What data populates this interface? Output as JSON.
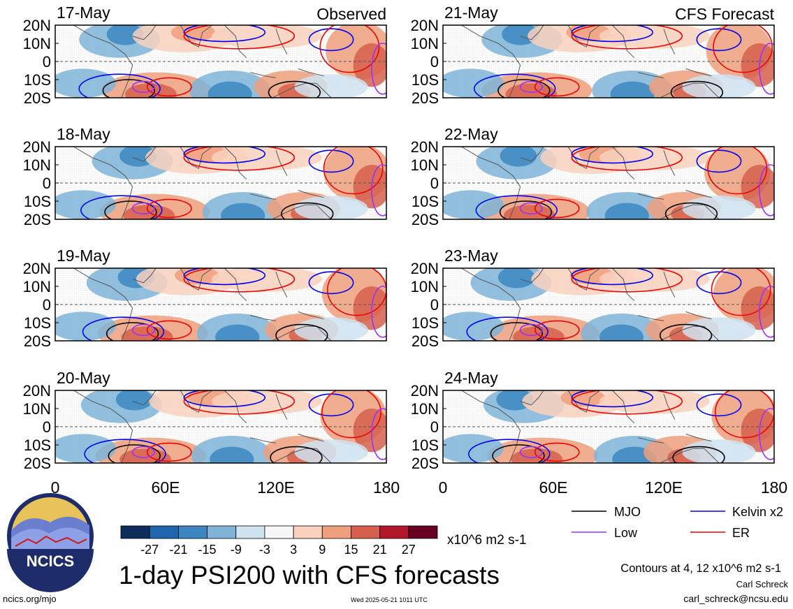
{
  "chart_data": {
    "type": "heatmap",
    "title": "1-day PSI200 with CFS forecasts",
    "units": "x10^6 m2 s-1",
    "contour_note": "Contours at 4, 12 x10^6 m2 s-1",
    "column_labels": {
      "left": "Observed",
      "right": "CFS Forecast"
    },
    "x_axis": {
      "ticks": [
        "0",
        "60E",
        "120E",
        "180"
      ],
      "range": [
        0,
        180
      ]
    },
    "y_axis": {
      "ticks": [
        "20N",
        "10N",
        "0",
        "10S",
        "20S"
      ],
      "range": [
        -20,
        20
      ]
    },
    "panels": [
      {
        "date": "17-May",
        "group": "Observed"
      },
      {
        "date": "18-May",
        "group": "Observed"
      },
      {
        "date": "19-May",
        "group": "Observed"
      },
      {
        "date": "20-May",
        "group": "Observed"
      },
      {
        "date": "21-May",
        "group": "CFS Forecast"
      },
      {
        "date": "22-May",
        "group": "CFS Forecast"
      },
      {
        "date": "23-May",
        "group": "CFS Forecast"
      },
      {
        "date": "24-May",
        "group": "CFS Forecast"
      }
    ],
    "colorbar": {
      "labels": [
        "-27",
        "-21",
        "-15",
        "-9",
        "-3",
        "3",
        "9",
        "15",
        "21",
        "27"
      ],
      "colors": [
        "#0d2e5c",
        "#1f66ad",
        "#3b87c1",
        "#7fb4d8",
        "#cfe2f0",
        "#f7f7f7",
        "#f9d1bd",
        "#ef9f7d",
        "#d6604d",
        "#b2182b",
        "#67001f"
      ]
    },
    "legend": [
      {
        "label": "MJO",
        "color": "#000000"
      },
      {
        "label": "Kelvin x2",
        "color": "#0000ee"
      },
      {
        "label": "Low",
        "color": "#9b30ff"
      },
      {
        "label": "ER",
        "color": "#ee0000"
      }
    ]
  },
  "logo": {
    "text": "NCICS"
  },
  "footer": {
    "url": "ncics.org/mjo",
    "timestamp": "Wed 2025-05-21 1011 UTC",
    "author": "Carl Schreck",
    "email": "carl_schreck@ncsu.edu"
  }
}
